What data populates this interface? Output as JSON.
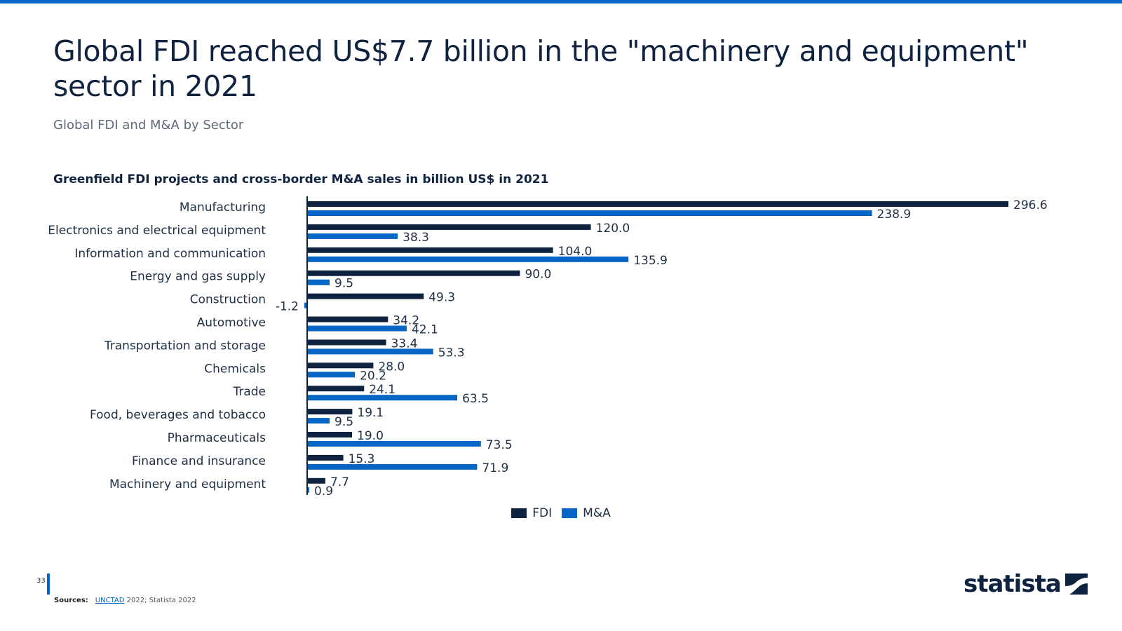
{
  "header": {
    "title": "Global FDI reached US$7.7 billion in the \"machinery and equipment\" sector in 2021",
    "subtitle": "Global FDI and M&A by Sector"
  },
  "chart_data": {
    "type": "bar",
    "orientation": "horizontal",
    "title": "Greenfield FDI projects and cross-border M&A sales in billion US$ in 2021",
    "categories": [
      "Manufacturing",
      "Electronics and electrical equipment",
      "Information and communication",
      "Energy and gas supply",
      "Construction",
      "Automotive",
      "Transportation and storage",
      "Chemicals",
      "Trade",
      "Food, beverages and tobacco",
      "Pharmaceuticals",
      "Finance and insurance",
      "Machinery and equipment"
    ],
    "series": [
      {
        "name": "FDI",
        "color": "#0f2240",
        "values": [
          296.6,
          120.0,
          104.0,
          90.0,
          49.3,
          34.2,
          33.4,
          28.0,
          24.1,
          19.1,
          19.0,
          15.3,
          7.7
        ],
        "labels": [
          "296.6",
          "120.0",
          "104.0",
          "90.0",
          "49.3",
          "34.2",
          "33.4",
          "28.0",
          "24.1",
          "19.1",
          "19.0",
          "15.3",
          "7.7"
        ]
      },
      {
        "name": "M&A",
        "color": "#0666c5",
        "values": [
          238.9,
          38.3,
          135.9,
          9.5,
          -1.2,
          42.1,
          53.3,
          20.2,
          63.5,
          9.5,
          73.5,
          71.9,
          0.9
        ],
        "labels": [
          "238.9",
          "38.3",
          "135.9",
          "9.5",
          "-1.2",
          "42.1",
          "53.3",
          "20.2",
          "63.5",
          "9.5",
          "73.5",
          "71.9",
          "0.9"
        ]
      }
    ],
    "xlim": [
      -1.2,
      296.6
    ],
    "legend": "bottom-center",
    "grid": false
  },
  "footer": {
    "page_number": "33",
    "sources_label": "Sources:",
    "source_link": "UNCTAD",
    "source_rest": " 2022; Statista 2022",
    "brand": "statista"
  }
}
